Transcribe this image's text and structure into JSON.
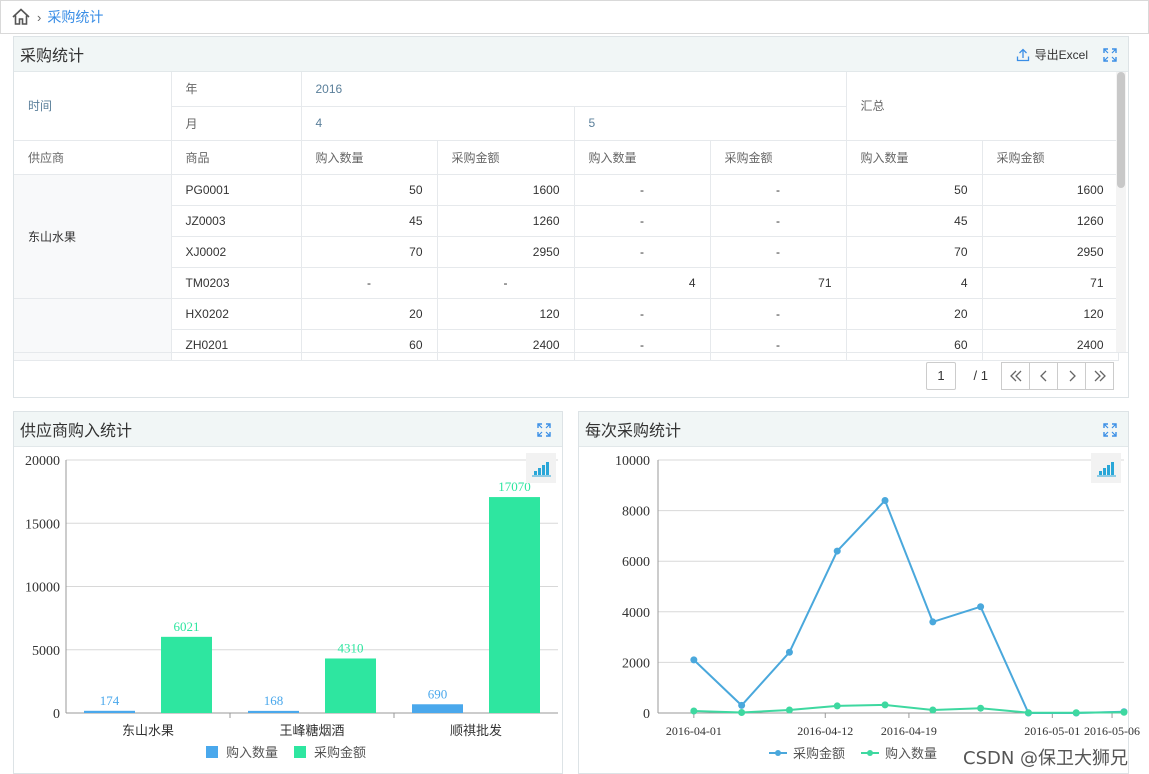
{
  "breadcrumb": {
    "current": "采购统计"
  },
  "top_panel": {
    "title": "采购统计",
    "export_label": "导出Excel",
    "header": {
      "time_label": "时间",
      "year_label": "年",
      "year_value": "2016",
      "month_label": "月",
      "month_values": [
        "4",
        "5"
      ],
      "summary_label": "汇总",
      "supplier_label": "供应商",
      "product_label": "商品",
      "qty_label": "购入数量",
      "amount_label": "采购金额"
    },
    "rows": [
      {
        "supplier": "东山水果",
        "code": "PG0001",
        "cells": [
          "50",
          "1600",
          "-",
          "-",
          "50",
          "1600"
        ]
      },
      {
        "supplier": "",
        "code": "JZ0003",
        "cells": [
          "45",
          "1260",
          "-",
          "-",
          "45",
          "1260"
        ]
      },
      {
        "supplier": "",
        "code": "XJ0002",
        "cells": [
          "70",
          "2950",
          "-",
          "-",
          "70",
          "2950"
        ]
      },
      {
        "supplier": "",
        "code": "TM0203",
        "cells": [
          "-",
          "-",
          "4",
          "71",
          "4",
          "71"
        ]
      },
      {
        "supplier": "",
        "code": "HX0202",
        "cells": [
          "20",
          "120",
          "-",
          "-",
          "20",
          "120"
        ]
      },
      {
        "supplier": "",
        "code": "ZH0201",
        "cells": [
          "60",
          "2400",
          "-",
          "-",
          "60",
          "2400"
        ]
      }
    ],
    "pager": {
      "current_page": "1",
      "total": "/ 1"
    }
  },
  "charts_panel_titles": {
    "left": "供应商购入统计",
    "right": "每次采购统计"
  },
  "chart_data": [
    {
      "type": "bar",
      "categories": [
        "东山水果",
        "王峰糖烟酒",
        "顺祺批发"
      ],
      "series": [
        {
          "name": "购入数量",
          "values": [
            174,
            168,
            690
          ],
          "color": "#4aa8ec"
        },
        {
          "name": "采购金额",
          "values": [
            6021,
            4310,
            17070
          ],
          "color": "#2ee6a0"
        }
      ],
      "ylim": [
        0,
        20000
      ],
      "yticks": [
        0,
        5000,
        10000,
        15000,
        20000
      ],
      "grid": true,
      "legend": "bottom"
    },
    {
      "type": "line",
      "x": [
        "2016-04-01",
        "2016-04-05",
        "2016-04-09",
        "2016-04-13",
        "2016-04-17",
        "2016-04-21",
        "2016-04-25",
        "2016-04-29",
        "2016-05-03",
        "2016-05-07"
      ],
      "xticks": [
        "2016-04-01",
        "2016-04-12",
        "2016-04-19",
        "2016-05-01",
        "2016-05-06"
      ],
      "series": [
        {
          "name": "采购金额",
          "values": [
            2100,
            300,
            2400,
            6400,
            8400,
            3600,
            4200,
            0,
            0,
            50
          ],
          "color": "#4aa8dc"
        },
        {
          "name": "购入数量",
          "values": [
            80,
            20,
            120,
            280,
            320,
            120,
            190,
            10,
            10,
            30
          ],
          "color": "#3ed8a0"
        }
      ],
      "ylim": [
        0,
        10000
      ],
      "yticks": [
        0,
        2000,
        4000,
        6000,
        8000,
        10000
      ],
      "grid": true,
      "legend": "bottom"
    }
  ],
  "watermark": "CSDN @保卫大狮兄"
}
